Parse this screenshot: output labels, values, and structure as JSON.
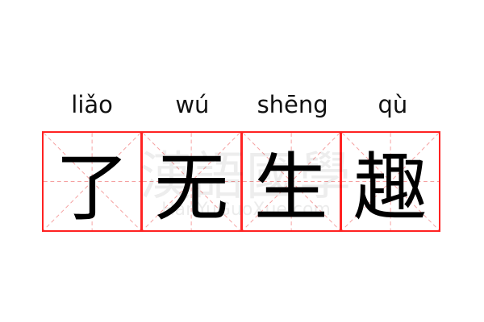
{
  "pinyin": [
    "liǎo",
    "wú",
    "shēng",
    "qù"
  ],
  "characters": [
    "了",
    "无",
    "生",
    "趣"
  ],
  "watermark": {
    "logo_text": "漢語國學",
    "site": "HanYuGuoXue.com"
  },
  "colors": {
    "grid_border": "#ff2222",
    "guide_lines": "#f5a0a0",
    "text": "#000000"
  }
}
